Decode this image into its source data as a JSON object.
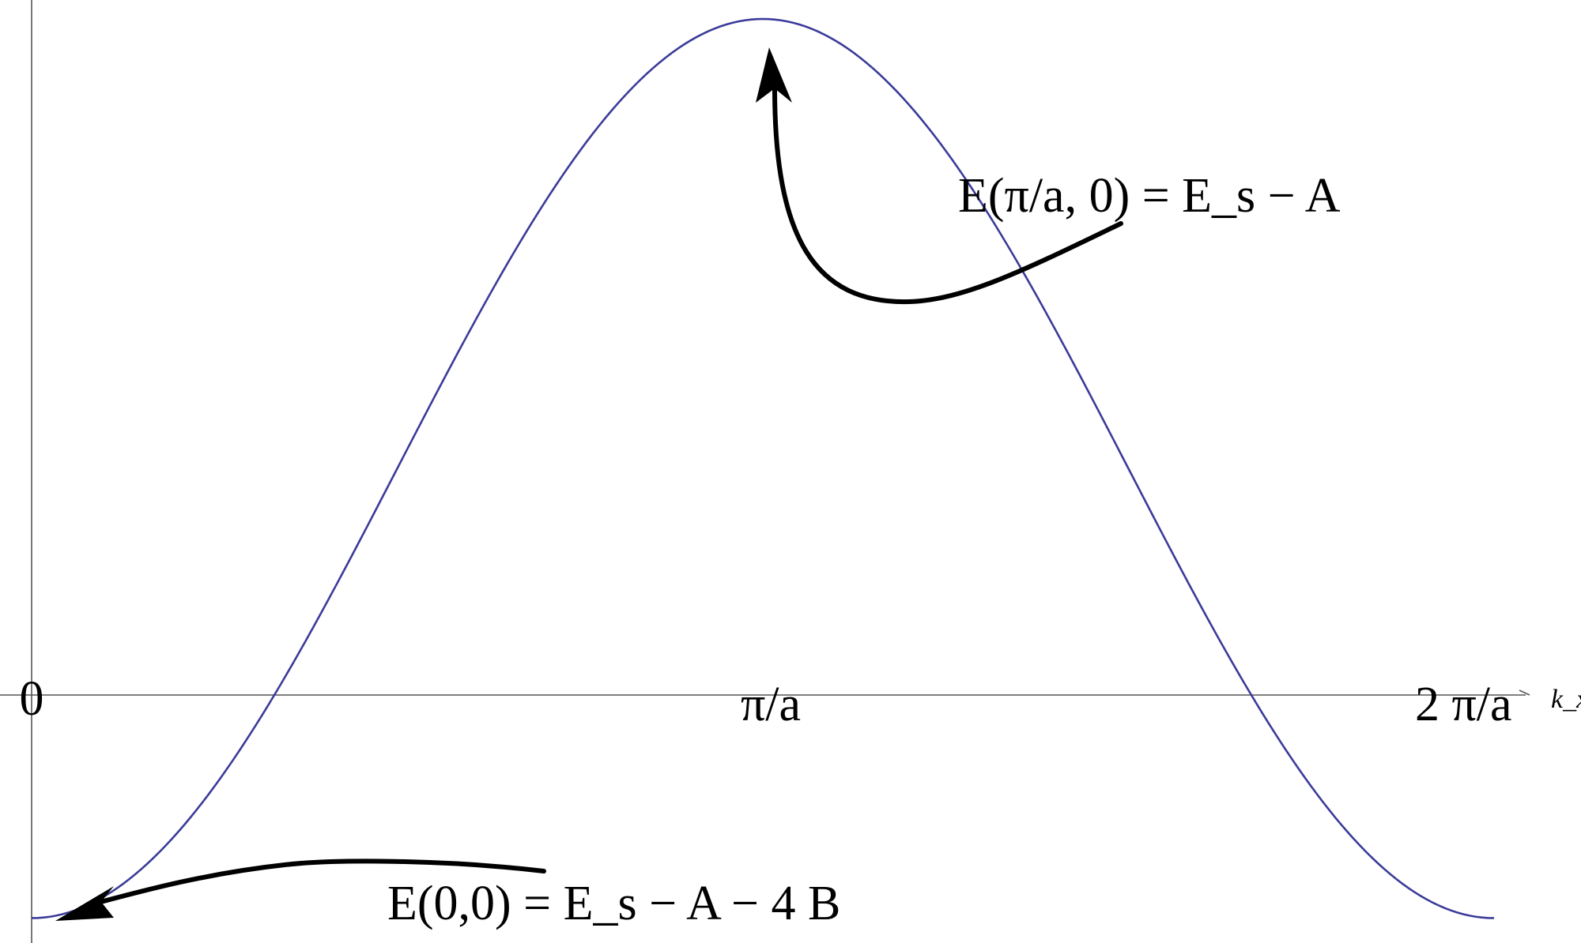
{
  "chart_data": {
    "type": "line",
    "title": "",
    "xlabel": "k_x",
    "ylabel": "",
    "xlim": [
      0,
      6.283
    ],
    "ylim": [
      -0.35,
      1.0
    ],
    "grid": false,
    "legend": "none",
    "x_ticks": [
      {
        "value": 0,
        "label": "0"
      },
      {
        "value": 3.1416,
        "label": "π/a"
      },
      {
        "value": 6.2832,
        "label": "2 π/a"
      }
    ],
    "series": [
      {
        "color": "#3b3b9a",
        "function": "-cos(x)",
        "x": [
          0,
          0.3927,
          0.7854,
          1.1781,
          1.5708,
          1.9635,
          2.3562,
          2.7489,
          3.1416,
          3.5343,
          3.927,
          4.3197,
          4.7124,
          5.1051,
          5.4978,
          5.8905,
          6.2832
        ],
        "values": [
          -0.33,
          -0.27,
          -0.1,
          0.15,
          0.44,
          0.71,
          0.9,
          0.99,
          1.0,
          0.99,
          0.9,
          0.71,
          0.44,
          0.15,
          -0.1,
          -0.27,
          -0.33
        ]
      }
    ],
    "annotations": [
      {
        "text": "E(π/a, 0) = E_s − A",
        "points_to": {
          "x": 3.1416,
          "y": 1.0
        }
      },
      {
        "text": "E(0,0) = E_s − A − 4 B",
        "points_to": {
          "x": 0,
          "y": -0.33
        }
      }
    ]
  }
}
